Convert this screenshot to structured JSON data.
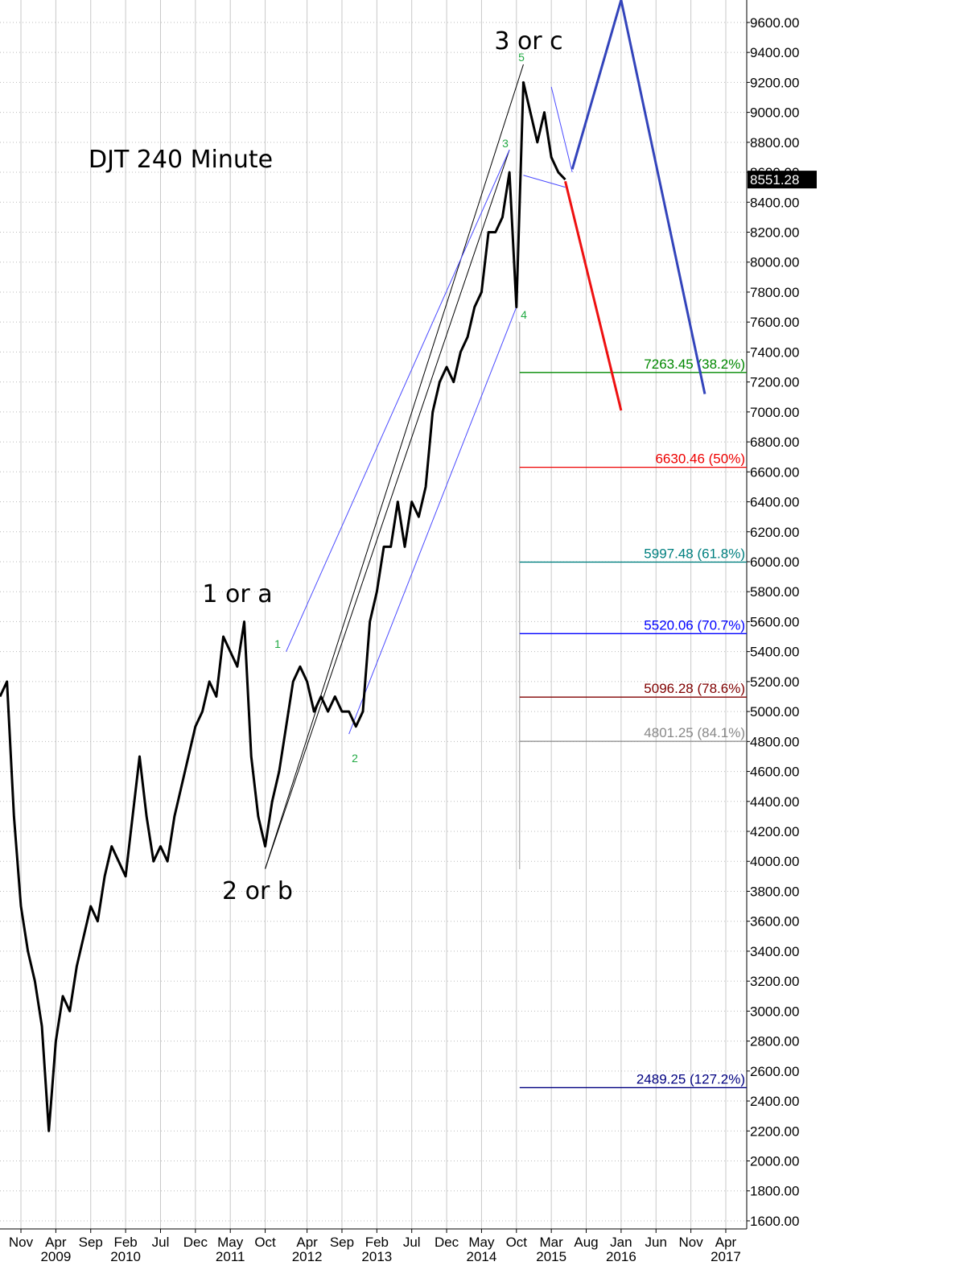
{
  "chart_data": {
    "type": "line",
    "title": "DJT 240 Minute",
    "annotations": [
      "1 or a",
      "2 or b",
      "3 or c"
    ],
    "wave_labels": [
      "1",
      "2",
      "3",
      "4",
      "5"
    ],
    "xlim": [
      "2008-08",
      "2017-07"
    ],
    "ylim": [
      1546,
      9750
    ],
    "grid": true,
    "xticks": [
      {
        "value": "2008-11",
        "label": "Nov"
      },
      {
        "value": "2009-04",
        "label": "Apr"
      },
      {
        "value": "2009-09",
        "label": "Sep"
      },
      {
        "value": "2010-02",
        "label": "Feb"
      },
      {
        "value": "2010-07",
        "label": "Jul"
      },
      {
        "value": "2010-12",
        "label": "Dec"
      },
      {
        "value": "2011-05",
        "label": "May"
      },
      {
        "value": "2011-10",
        "label": "Oct"
      },
      {
        "value": "2012-04",
        "label": "Apr"
      },
      {
        "value": "2012-09",
        "label": "Sep"
      },
      {
        "value": "2013-02",
        "label": "Feb"
      },
      {
        "value": "2013-07",
        "label": "Jul"
      },
      {
        "value": "2013-12",
        "label": "Dec"
      },
      {
        "value": "2014-05",
        "label": "May"
      },
      {
        "value": "2014-10",
        "label": "Oct"
      },
      {
        "value": "2015-03",
        "label": "Mar"
      },
      {
        "value": "2015-08",
        "label": "Aug"
      },
      {
        "value": "2016-01",
        "label": "Jan"
      },
      {
        "value": "2016-06",
        "label": "Jun"
      },
      {
        "value": "2016-11",
        "label": "Nov"
      },
      {
        "value": "2017-04",
        "label": "Apr"
      }
    ],
    "year_ticks": [
      {
        "value": "2009-04",
        "label": "2009"
      },
      {
        "value": "2010-02",
        "label": "2010"
      },
      {
        "value": "2011-05",
        "label": "2011"
      },
      {
        "value": "2012-04",
        "label": "2012"
      },
      {
        "value": "2013-02",
        "label": "2013"
      },
      {
        "value": "2014-05",
        "label": "2014"
      },
      {
        "value": "2015-03",
        "label": "2015"
      },
      {
        "value": "2016-01",
        "label": "2016"
      },
      {
        "value": "2017-04",
        "label": "2017"
      }
    ],
    "yticks": [
      {
        "value": 1600,
        "label": "1600.00"
      },
      {
        "value": 1800,
        "label": "1800.00"
      },
      {
        "value": 2000,
        "label": "2000.00"
      },
      {
        "value": 2200,
        "label": "2200.00"
      },
      {
        "value": 2400,
        "label": "2400.00"
      },
      {
        "value": 2600,
        "label": "2600.00"
      },
      {
        "value": 2800,
        "label": "2800.00"
      },
      {
        "value": 3000,
        "label": "3000.00"
      },
      {
        "value": 3200,
        "label": "3200.00"
      },
      {
        "value": 3400,
        "label": "3400.00"
      },
      {
        "value": 3600,
        "label": "3600.00"
      },
      {
        "value": 3800,
        "label": "3800.00"
      },
      {
        "value": 4000,
        "label": "4000.00"
      },
      {
        "value": 4200,
        "label": "4200.00"
      },
      {
        "value": 4400,
        "label": "4400.00"
      },
      {
        "value": 4600,
        "label": "4600.00"
      },
      {
        "value": 4800,
        "label": "4800.00"
      },
      {
        "value": 5000,
        "label": "5000.00"
      },
      {
        "value": 5200,
        "label": "5200.00"
      },
      {
        "value": 5400,
        "label": "5400.00"
      },
      {
        "value": 5600,
        "label": "5600.00"
      },
      {
        "value": 5800,
        "label": "5800.00"
      },
      {
        "value": 6000,
        "label": "6000.00"
      },
      {
        "value": 6200,
        "label": "6200.00"
      },
      {
        "value": 6400,
        "label": "6400.00"
      },
      {
        "value": 6600,
        "label": "6600.00"
      },
      {
        "value": 6800,
        "label": "6800.00"
      },
      {
        "value": 7000,
        "label": "7000.00"
      },
      {
        "value": 7200,
        "label": "7200.00"
      },
      {
        "value": 7400,
        "label": "7400.00"
      },
      {
        "value": 7600,
        "label": "7600.00"
      },
      {
        "value": 7800,
        "label": "7800.00"
      },
      {
        "value": 8000,
        "label": "8000.00"
      },
      {
        "value": 8200,
        "label": "8200.00"
      },
      {
        "value": 8400,
        "label": "8400.00"
      },
      {
        "value": 8600,
        "label": "8600.00"
      },
      {
        "value": 8800,
        "label": "8800.00"
      },
      {
        "value": 9000,
        "label": "9000.00"
      },
      {
        "value": 9200,
        "label": "9200.00"
      },
      {
        "value": 9400,
        "label": "9400.00"
      },
      {
        "value": 9600,
        "label": "9600.00"
      }
    ],
    "last_price": 8551.28,
    "series": [
      {
        "color": "#000000",
        "x": [
          "2008-08",
          "2008-09",
          "2008-10",
          "2008-11",
          "2008-12",
          "2009-01",
          "2009-02",
          "2009-03",
          "2009-04",
          "2009-05",
          "2009-06",
          "2009-07",
          "2009-08",
          "2009-09",
          "2009-10",
          "2009-11",
          "2009-12",
          "2010-01",
          "2010-02",
          "2010-03",
          "2010-04",
          "2010-05",
          "2010-06",
          "2010-07",
          "2010-08",
          "2010-09",
          "2010-10",
          "2010-11",
          "2010-12",
          "2011-01",
          "2011-02",
          "2011-03",
          "2011-04",
          "2011-05",
          "2011-06",
          "2011-07",
          "2011-08",
          "2011-09",
          "2011-10",
          "2011-11",
          "2011-12",
          "2012-01",
          "2012-02",
          "2012-03",
          "2012-04",
          "2012-05",
          "2012-06",
          "2012-07",
          "2012-08",
          "2012-09",
          "2012-10",
          "2012-11",
          "2012-12",
          "2013-01",
          "2013-02",
          "2013-03",
          "2013-04",
          "2013-05",
          "2013-06",
          "2013-07",
          "2013-08",
          "2013-09",
          "2013-10",
          "2013-11",
          "2013-12",
          "2014-01",
          "2014-02",
          "2014-03",
          "2014-04",
          "2014-05",
          "2014-06",
          "2014-07",
          "2014-08",
          "2014-09",
          "2014-10",
          "2014-11",
          "2014-12",
          "2015-01",
          "2015-02",
          "2015-03",
          "2015-04",
          "2015-05"
        ],
        "values": [
          5100,
          5200,
          4300,
          3700,
          3400,
          3200,
          2900,
          2200,
          2800,
          3100,
          3000,
          3300,
          3500,
          3700,
          3600,
          3900,
          4100,
          4000,
          3900,
          4300,
          4700,
          4300,
          4000,
          4100,
          4000,
          4300,
          4500,
          4700,
          4900,
          5000,
          5200,
          5100,
          5500,
          5400,
          5300,
          5600,
          4700,
          4300,
          4100,
          4400,
          4600,
          4900,
          5200,
          5300,
          5200,
          5000,
          5100,
          5000,
          5100,
          5000,
          5000,
          4900,
          5000,
          5600,
          5800,
          6100,
          6100,
          6400,
          6100,
          6400,
          6300,
          6500,
          7000,
          7200,
          7300,
          7200,
          7400,
          7500,
          7700,
          7800,
          8200,
          8200,
          8300,
          8600,
          7700,
          9200,
          9000,
          8800,
          9000,
          8700,
          8600,
          8551.28
        ]
      }
    ],
    "trendlines": [
      {
        "color": "#000000",
        "x": [
          "2011-10",
          "2014-11"
        ],
        "values": [
          3950,
          9320
        ]
      },
      {
        "color": "#000000",
        "x": [
          "2011-10",
          "2014-09"
        ],
        "values": [
          3950,
          8750
        ]
      },
      {
        "color": "#4a4aff",
        "x": [
          "2012-01",
          "2014-09"
        ],
        "values": [
          5400,
          8750
        ]
      },
      {
        "color": "#4a4aff",
        "x": [
          "2012-10",
          "2014-10"
        ],
        "values": [
          4850,
          7700
        ]
      },
      {
        "color": "#4a4aff",
        "x": [
          "2014-11",
          "2015-05"
        ],
        "values": [
          8580,
          8500
        ]
      },
      {
        "color": "#4a4aff",
        "x": [
          "2015-03",
          "2015-06"
        ],
        "values": [
          9170,
          8600
        ]
      }
    ],
    "projections": [
      {
        "color": "#3344bb",
        "x": [
          "2015-06",
          "2016-01",
          "2017-01"
        ],
        "values": [
          8620,
          9750,
          7120
        ]
      },
      {
        "color": "#ee1111",
        "x": [
          "2015-05",
          "2016-01"
        ],
        "values": [
          8540,
          7010
        ]
      }
    ],
    "fib_levels": [
      {
        "value": 7263.45,
        "label": "7263.45 (38.2%)",
        "color": "#008800"
      },
      {
        "value": 6630.46,
        "label": "6630.46 (50%)",
        "color": "#ee0000"
      },
      {
        "value": 5997.48,
        "label": "5997.48 (61.8%)",
        "color": "#008080"
      },
      {
        "value": 5520.06,
        "label": "5520.06 (70.7%)",
        "color": "#0000ff"
      },
      {
        "value": 5096.28,
        "label": "5096.28 (78.6%)",
        "color": "#800000"
      },
      {
        "value": 4801.25,
        "label": "4801.25 (84.1%)",
        "color": "#888888"
      },
      {
        "value": 2489.25,
        "label": "2489.25 (127.2%)",
        "color": "#000080"
      }
    ]
  }
}
